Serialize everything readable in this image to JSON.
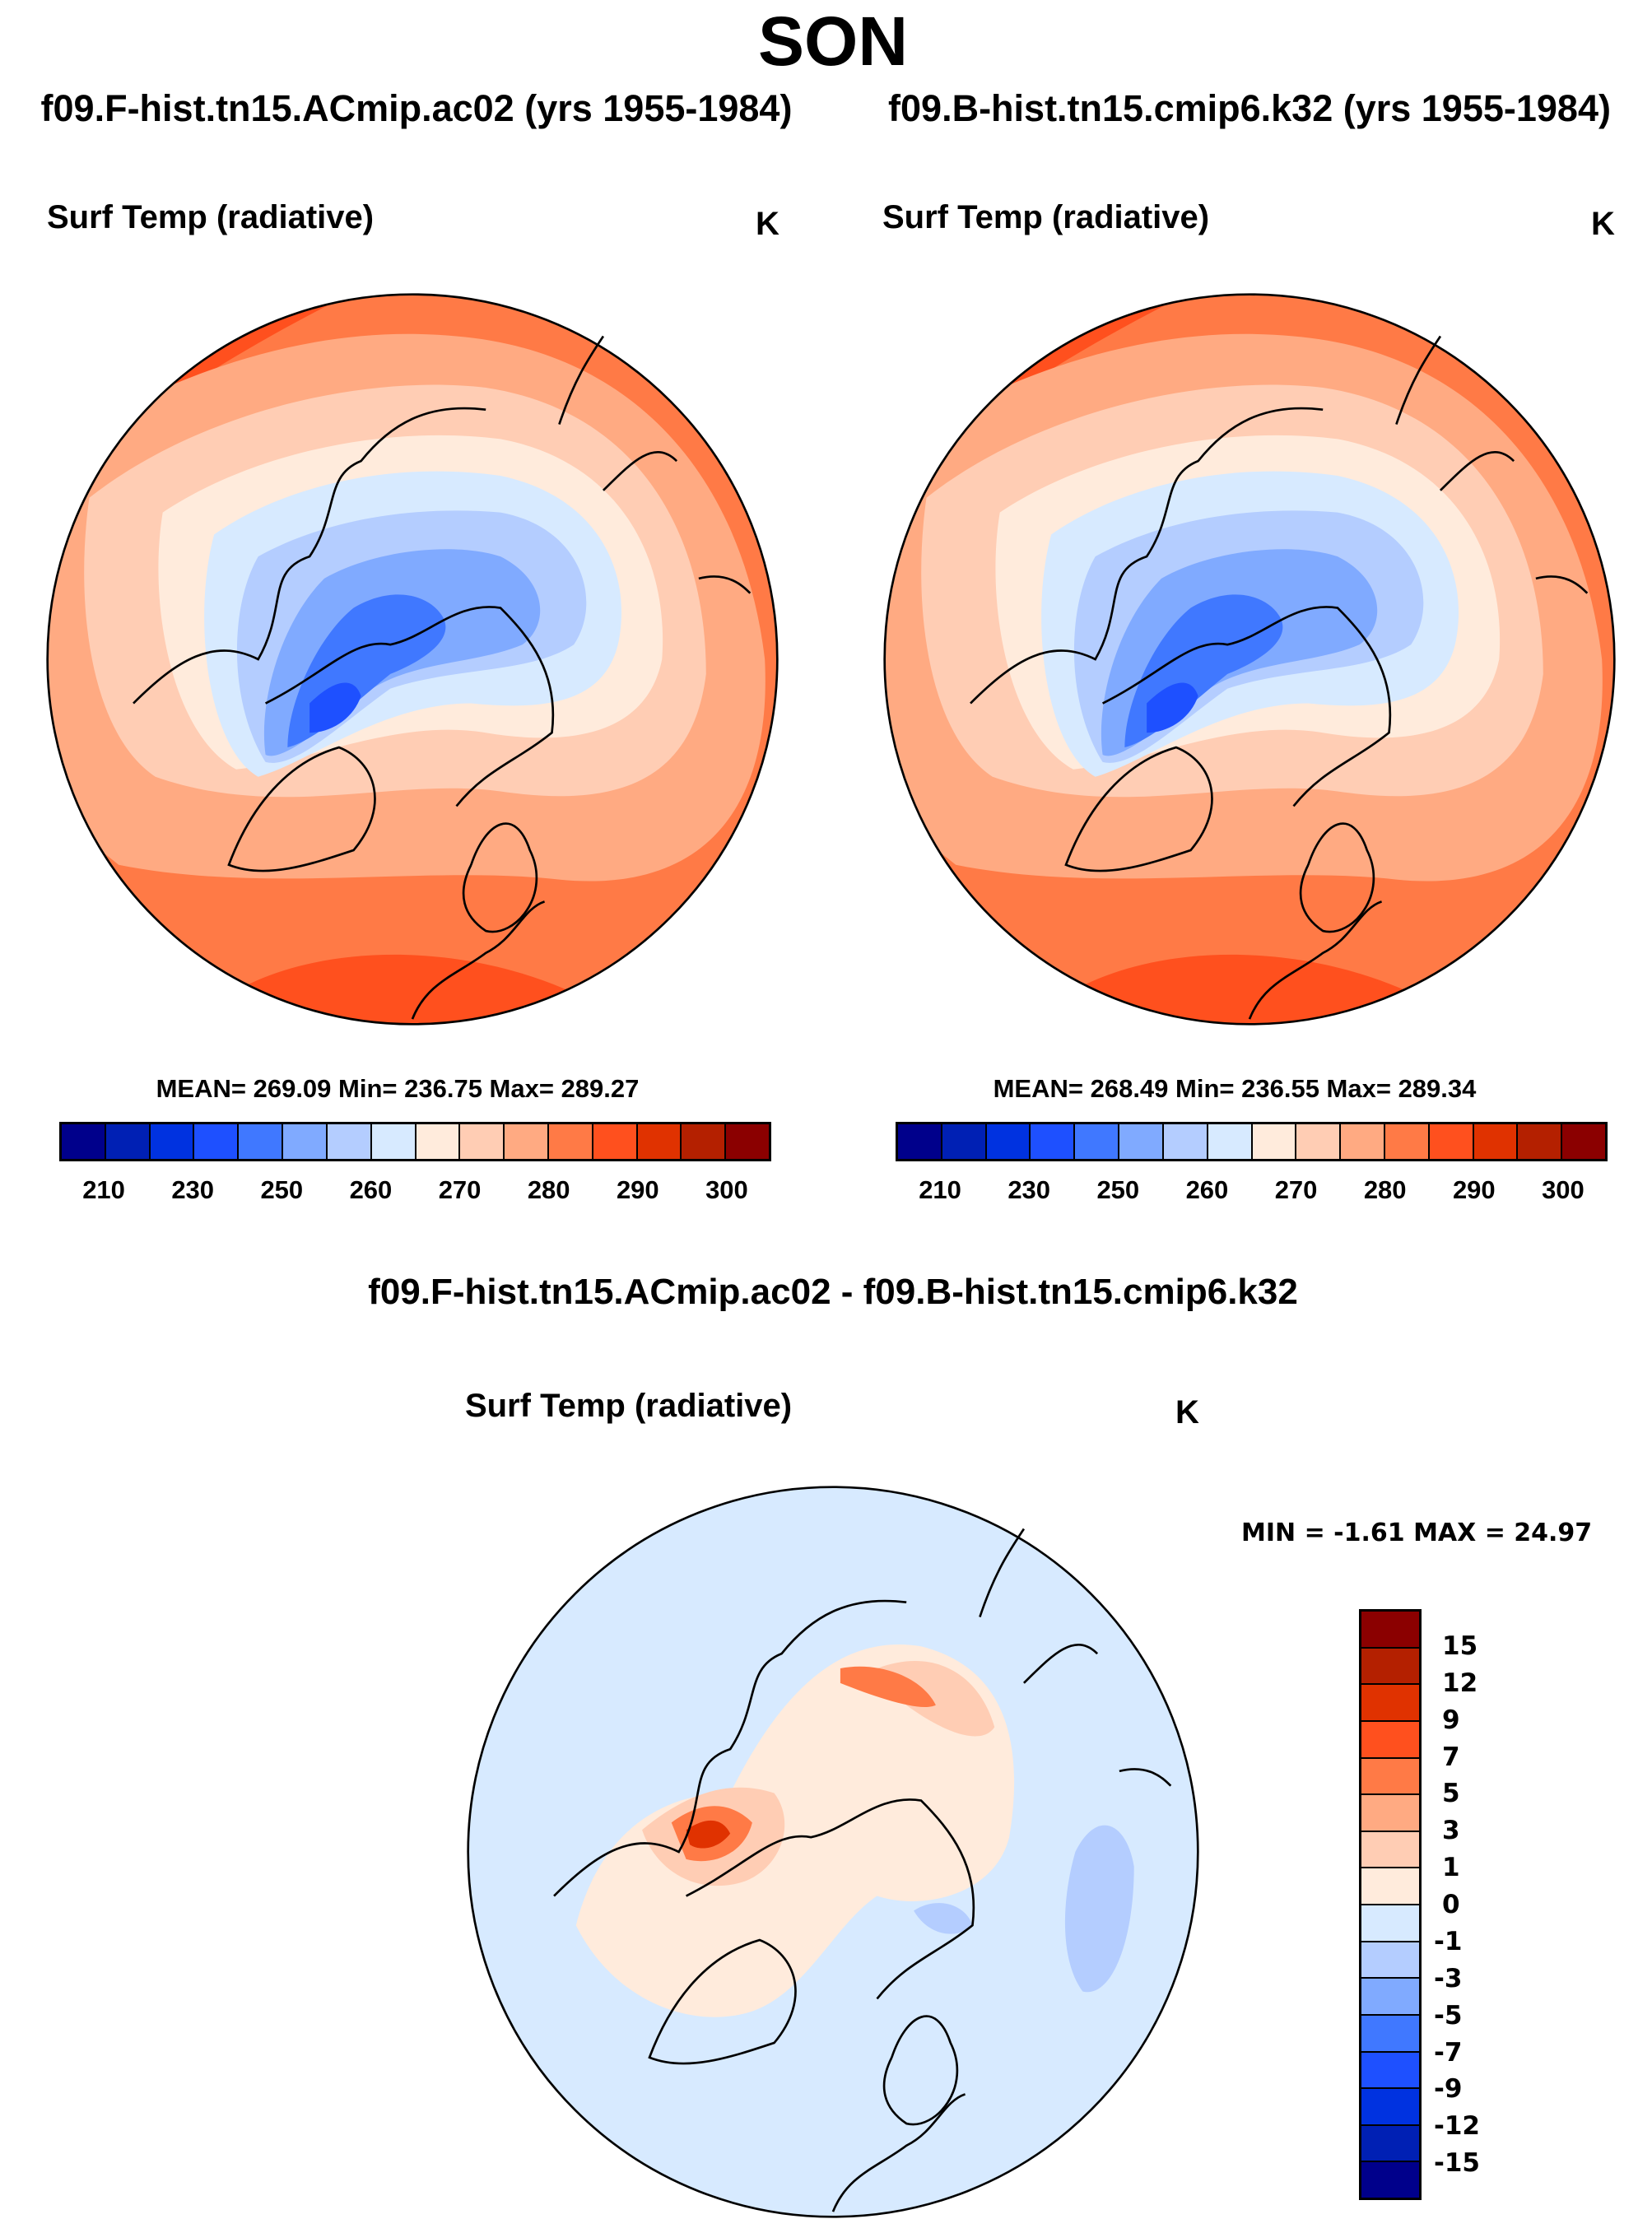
{
  "title": "SON",
  "chart_data": [
    {
      "type": "heatmap",
      "projection": "north-polar-stereographic",
      "case_title": "f09.F-hist.tn15.ACmip.ac02 (yrs 1955-1984)",
      "variable": "Surf Temp (radiative)",
      "units": "K",
      "stats": "MEAN= 269.09  Min= 236.75  Max= 289.27",
      "mean": 269.09,
      "min": 236.75,
      "max": 289.27,
      "colorbar_ticks": [
        "210",
        "230",
        "250",
        "260",
        "270",
        "280",
        "290",
        "300"
      ]
    },
    {
      "type": "heatmap",
      "projection": "north-polar-stereographic",
      "case_title": "f09.B-hist.tn15.cmip6.k32 (yrs 1955-1984)",
      "variable": "Surf Temp (radiative)",
      "units": "K",
      "stats": "MEAN= 268.49  Min= 236.55  Max= 289.34",
      "mean": 268.49,
      "min": 236.55,
      "max": 289.34,
      "colorbar_ticks": [
        "210",
        "230",
        "250",
        "260",
        "270",
        "280",
        "290",
        "300"
      ]
    },
    {
      "type": "heatmap",
      "projection": "north-polar-stereographic",
      "case_title": "f09.F-hist.tn15.ACmip.ac02 - f09.B-hist.tn15.cmip6.k32",
      "variable": "Surf Temp (radiative)",
      "units": "K",
      "stats": "MIN =  -1.61 MAX =  24.97",
      "min": -1.61,
      "max": 24.97,
      "colorbar_ticks": [
        "-15",
        "-12",
        "-9",
        "-7",
        "-5",
        "-3",
        "-1",
        "0",
        "1",
        "3",
        "5",
        "7",
        "9",
        "12",
        "15"
      ]
    }
  ],
  "palette": [
    "#00008B",
    "#0020B4",
    "#0032E0",
    "#1E50FF",
    "#4078FF",
    "#80AAFF",
    "#B4CDFF",
    "#D7EAFF",
    "#FFEBDC",
    "#FFCDB4",
    "#FFAA82",
    "#FF7A46",
    "#FF501E",
    "#E03200",
    "#B42000",
    "#8B0000"
  ]
}
